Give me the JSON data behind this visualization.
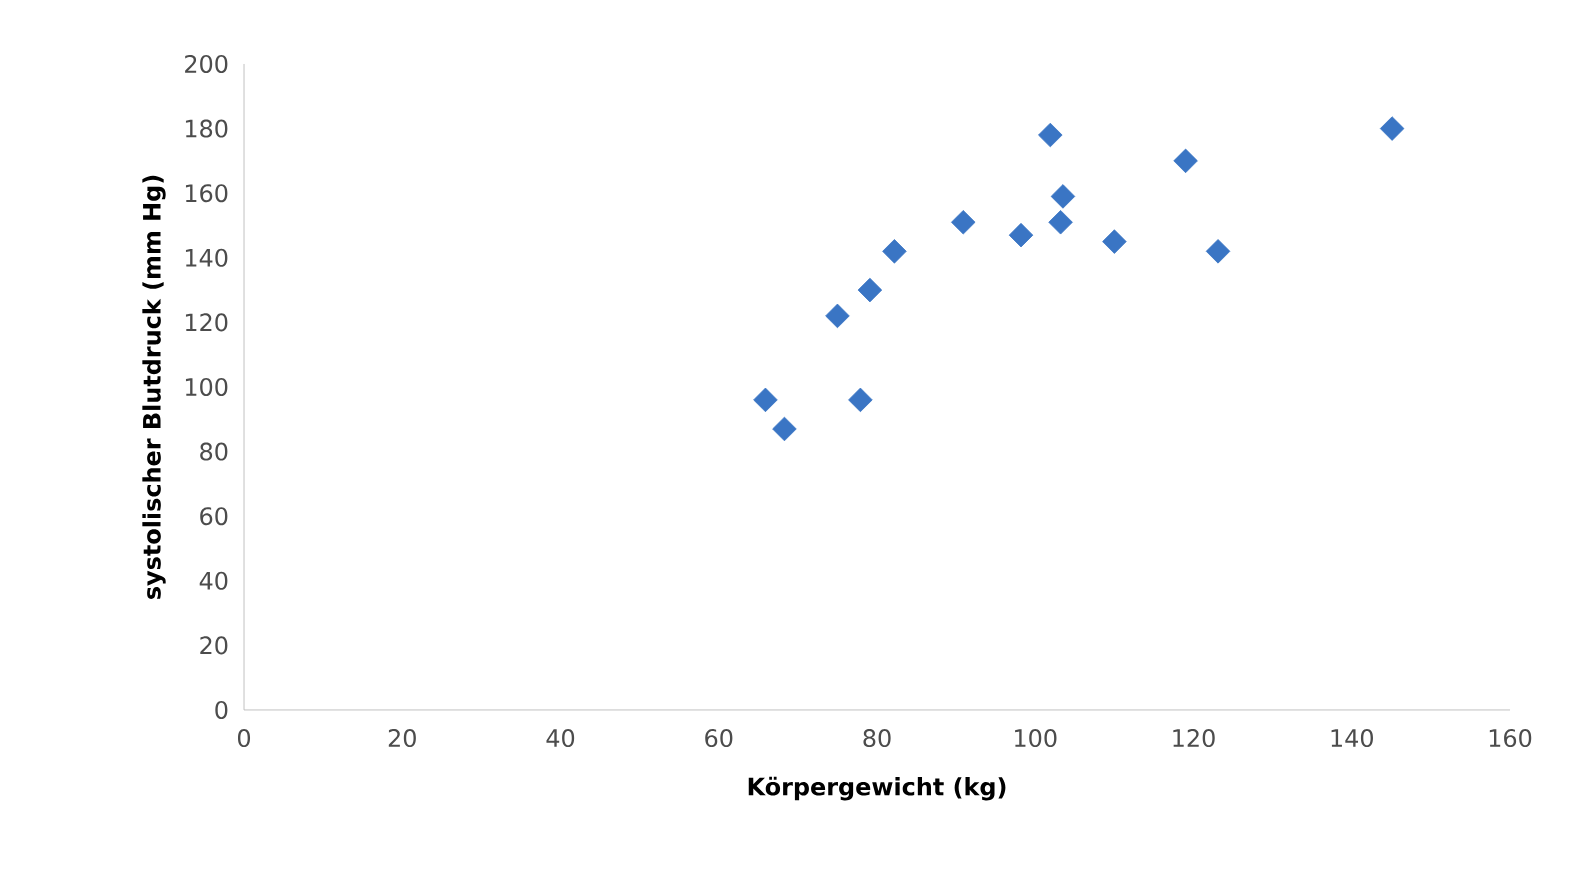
{
  "chart_data": {
    "type": "scatter",
    "xlabel": "Körpergewicht (kg)",
    "ylabel": "systolischer Blutdruck (mm Hg)",
    "x": [
      65.9,
      68.3,
      75.0,
      79.1,
      77.9,
      82.2,
      90.9,
      98.2,
      101.9,
      103.5,
      103.2,
      110.0,
      119.0,
      123.1,
      145.1
    ],
    "values": [
      96,
      87,
      122,
      130,
      96,
      142,
      151,
      147,
      178,
      159,
      151,
      145,
      170,
      142,
      180
    ],
    "color": "#3a75c4",
    "marker": "diamond",
    "xlim": [
      0,
      160
    ],
    "xticks": [
      0,
      20,
      40,
      60,
      80,
      100,
      120,
      140,
      160
    ],
    "ylim": [
      0,
      200
    ],
    "yticks": [
      0,
      20,
      40,
      60,
      80,
      100,
      120,
      140,
      160,
      180,
      200
    ],
    "grid": false
  }
}
